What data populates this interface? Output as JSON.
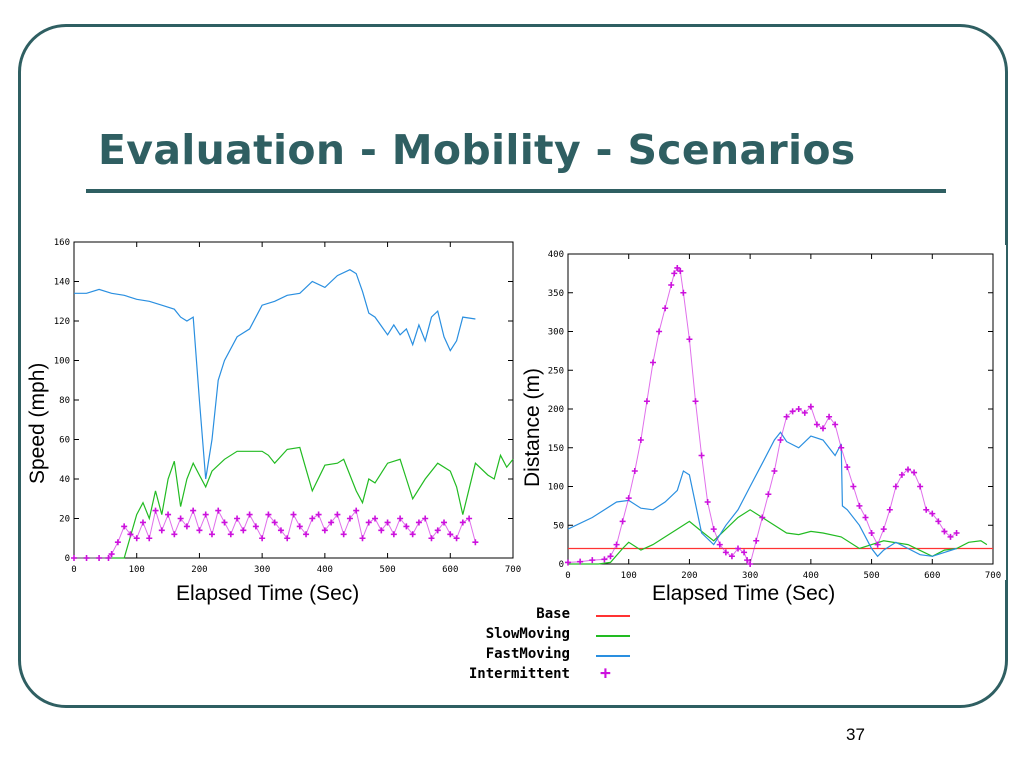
{
  "slide": {
    "title": "Evaluation - Mobility - Scenarios",
    "page_number": "37",
    "title_color": "#2f5f62"
  },
  "legend": {
    "items": [
      {
        "label": "Base",
        "color": "#ff3333",
        "style": "line"
      },
      {
        "label": "SlowMoving",
        "color": "#22bb22",
        "style": "line"
      },
      {
        "label": "FastMoving",
        "color": "#2a8fe0",
        "style": "line"
      },
      {
        "label": "Intermittent",
        "color": "#cc11dd",
        "style": "plus"
      }
    ]
  },
  "chart_data": [
    {
      "type": "line",
      "xlabel": "Elapsed Time (Sec)",
      "ylabel": "Speed (mph)",
      "xlim": [
        0,
        700
      ],
      "ylim": [
        0,
        160
      ],
      "xticks": [
        0,
        100,
        200,
        300,
        400,
        500,
        600,
        700
      ],
      "yticks": [
        0,
        20,
        40,
        60,
        80,
        100,
        120,
        140,
        160
      ],
      "grid": false,
      "series": [
        {
          "name": "SlowMoving",
          "color": "#22bb22",
          "marker": "none",
          "x": [
            0,
            50,
            80,
            100,
            110,
            120,
            130,
            140,
            150,
            160,
            170,
            180,
            190,
            200,
            210,
            220,
            240,
            260,
            280,
            300,
            310,
            320,
            340,
            360,
            370,
            380,
            400,
            420,
            430,
            450,
            460,
            470,
            480,
            500,
            520,
            530,
            540,
            560,
            580,
            600,
            610,
            620,
            640,
            660,
            670,
            680,
            690,
            700
          ],
          "y": [
            0,
            0,
            0,
            22,
            28,
            20,
            34,
            22,
            40,
            49,
            26,
            40,
            48,
            42,
            36,
            44,
            50,
            54,
            54,
            54,
            52,
            48,
            55,
            56,
            45,
            34,
            47,
            48,
            50,
            34,
            28,
            40,
            38,
            48,
            50,
            40,
            30,
            40,
            48,
            44,
            36,
            22,
            48,
            42,
            40,
            52,
            46,
            50
          ]
        },
        {
          "name": "FastMoving",
          "color": "#2a8fe0",
          "marker": "none",
          "x": [
            0,
            20,
            40,
            60,
            80,
            100,
            120,
            140,
            160,
            170,
            180,
            190,
            200,
            210,
            220,
            230,
            240,
            260,
            280,
            300,
            320,
            340,
            360,
            380,
            400,
            420,
            440,
            450,
            460,
            470,
            480,
            500,
            510,
            520,
            530,
            540,
            550,
            560,
            570,
            580,
            590,
            600,
            610,
            620,
            640
          ],
          "y": [
            134,
            134,
            136,
            134,
            133,
            131,
            130,
            128,
            126,
            122,
            120,
            122,
            80,
            40,
            60,
            90,
            100,
            112,
            116,
            128,
            130,
            133,
            134,
            140,
            137,
            143,
            146,
            144,
            135,
            124,
            122,
            113,
            118,
            113,
            116,
            108,
            118,
            110,
            122,
            125,
            112,
            105,
            110,
            122,
            121
          ]
        },
        {
          "name": "Intermittent",
          "color": "#cc11dd",
          "marker": "plus",
          "x": [
            0,
            20,
            40,
            55,
            60,
            70,
            80,
            90,
            100,
            110,
            120,
            130,
            140,
            150,
            160,
            170,
            180,
            190,
            200,
            210,
            220,
            230,
            240,
            250,
            260,
            270,
            280,
            290,
            300,
            310,
            320,
            330,
            340,
            350,
            360,
            370,
            380,
            390,
            400,
            410,
            420,
            430,
            440,
            450,
            460,
            470,
            480,
            490,
            500,
            510,
            520,
            530,
            540,
            550,
            560,
            570,
            580,
            590,
            600,
            610,
            620,
            630,
            640
          ],
          "y": [
            0,
            0,
            0,
            0,
            2,
            8,
            16,
            12,
            10,
            18,
            10,
            24,
            14,
            22,
            12,
            20,
            16,
            24,
            14,
            22,
            12,
            24,
            18,
            12,
            20,
            14,
            22,
            16,
            10,
            22,
            18,
            14,
            10,
            22,
            16,
            12,
            20,
            22,
            14,
            18,
            22,
            12,
            20,
            24,
            10,
            18,
            20,
            14,
            18,
            12,
            20,
            16,
            12,
            18,
            20,
            10,
            14,
            18,
            12,
            10,
            18,
            20,
            8
          ]
        }
      ]
    },
    {
      "type": "line",
      "xlabel": "Elapsed Time (Sec)",
      "ylabel": "Distance (m)",
      "xlim": [
        0,
        700
      ],
      "ylim": [
        0,
        400
      ],
      "xticks": [
        0,
        100,
        200,
        300,
        400,
        500,
        600,
        700
      ],
      "yticks": [
        0,
        50,
        100,
        150,
        200,
        250,
        300,
        350,
        400
      ],
      "grid": false,
      "series": [
        {
          "name": "Base",
          "color": "#ff3333",
          "marker": "none",
          "x": [
            0,
            700
          ],
          "y": [
            20,
            20
          ]
        },
        {
          "name": "SlowMoving",
          "color": "#22bb22",
          "marker": "none",
          "x": [
            0,
            50,
            70,
            90,
            100,
            120,
            140,
            160,
            180,
            200,
            220,
            240,
            260,
            280,
            300,
            320,
            340,
            360,
            380,
            400,
            420,
            450,
            480,
            520,
            560,
            600,
            620,
            640,
            660,
            680,
            690
          ],
          "y": [
            0,
            0,
            2,
            20,
            28,
            18,
            25,
            35,
            45,
            55,
            42,
            30,
            45,
            60,
            70,
            60,
            50,
            40,
            38,
            42,
            40,
            35,
            20,
            30,
            25,
            10,
            18,
            20,
            28,
            30,
            25
          ]
        },
        {
          "name": "FastMoving",
          "color": "#2a8fe0",
          "marker": "none",
          "x": [
            0,
            40,
            80,
            100,
            120,
            140,
            160,
            180,
            190,
            200,
            220,
            240,
            260,
            280,
            300,
            320,
            340,
            350,
            360,
            380,
            400,
            420,
            440,
            450,
            452,
            460,
            480,
            500,
            510,
            520,
            540,
            560,
            580,
            600,
            620,
            640
          ],
          "y": [
            45,
            60,
            80,
            82,
            72,
            70,
            80,
            95,
            120,
            115,
            40,
            25,
            50,
            70,
            100,
            130,
            160,
            170,
            158,
            150,
            165,
            160,
            140,
            155,
            75,
            70,
            50,
            20,
            10,
            18,
            28,
            20,
            12,
            10,
            15,
            20
          ]
        },
        {
          "name": "Intermittent",
          "color": "#cc11dd",
          "marker": "plus",
          "x": [
            0,
            20,
            40,
            60,
            70,
            80,
            90,
            100,
            110,
            120,
            130,
            140,
            150,
            160,
            170,
            175,
            180,
            185,
            190,
            200,
            210,
            220,
            230,
            240,
            250,
            260,
            270,
            280,
            290,
            295,
            300,
            310,
            320,
            330,
            340,
            350,
            360,
            370,
            380,
            390,
            400,
            410,
            420,
            430,
            440,
            450,
            460,
            470,
            480,
            490,
            500,
            510,
            520,
            530,
            540,
            550,
            560,
            570,
            580,
            590,
            600,
            610,
            620,
            630,
            640
          ],
          "y": [
            2,
            3,
            5,
            6,
            10,
            25,
            55,
            85,
            120,
            160,
            210,
            260,
            300,
            330,
            360,
            375,
            382,
            378,
            350,
            290,
            210,
            140,
            80,
            45,
            25,
            15,
            10,
            20,
            15,
            5,
            0,
            30,
            60,
            90,
            120,
            160,
            190,
            197,
            200,
            195,
            203,
            180,
            175,
            190,
            180,
            150,
            125,
            100,
            75,
            60,
            40,
            25,
            45,
            70,
            100,
            115,
            122,
            118,
            100,
            70,
            65,
            55,
            42,
            35,
            40
          ]
        }
      ]
    }
  ]
}
